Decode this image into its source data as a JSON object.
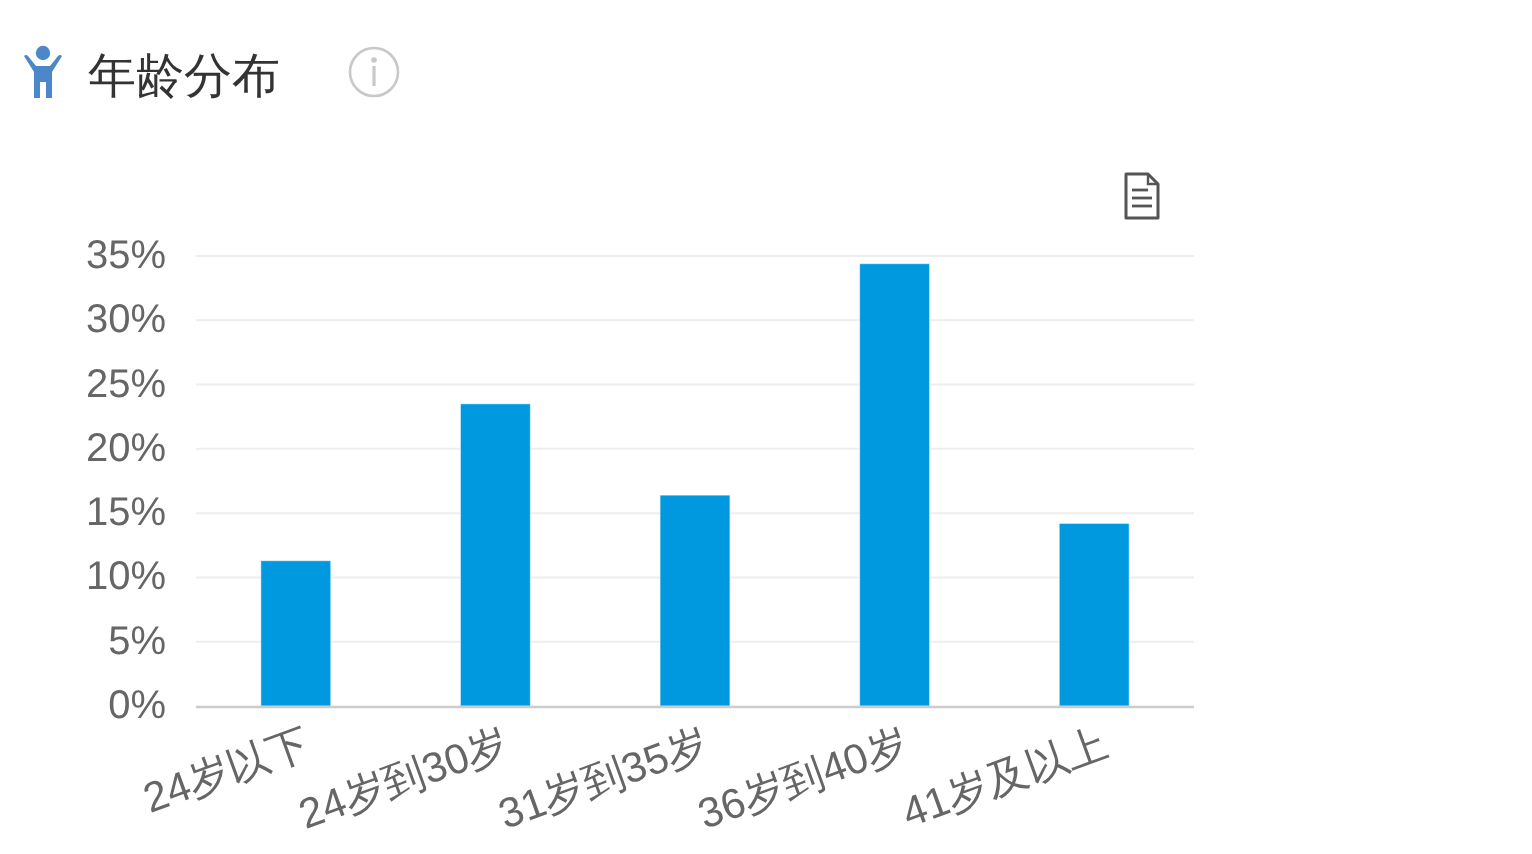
{
  "chart_data": {
    "type": "bar",
    "title": "年龄分布",
    "categories": [
      "24岁以下",
      "24岁到30岁",
      "31岁到35岁",
      "36岁到40岁",
      "41岁及以上"
    ],
    "values": [
      11.3,
      23.5,
      16.4,
      34.4,
      14.2
    ],
    "color": "#0099e0",
    "ylim": [
      0,
      35
    ],
    "yticks": [
      {
        "value": 0,
        "label": "0%"
      },
      {
        "value": 5,
        "label": "5%"
      },
      {
        "value": 10,
        "label": "10%"
      },
      {
        "value": 15,
        "label": "15%"
      },
      {
        "value": 20,
        "label": "20%"
      },
      {
        "value": 25,
        "label": "25%"
      },
      {
        "value": 30,
        "label": "30%"
      },
      {
        "value": 35,
        "label": "35%"
      }
    ],
    "grid": "y"
  }
}
